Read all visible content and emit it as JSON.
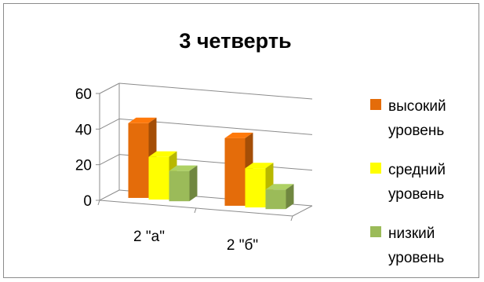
{
  "chart_data": {
    "type": "bar",
    "title": "3 четверть",
    "categories": [
      "2 \"а\"",
      "2 \"б\""
    ],
    "series": [
      {
        "name": "высокий уровень",
        "values": [
          42,
          38
        ],
        "color": "#e46c0a"
      },
      {
        "name": "средний уровень",
        "values": [
          24,
          22
        ],
        "color": "#ffff00"
      },
      {
        "name": "низкий уровень",
        "values": [
          17,
          11
        ],
        "color": "#9bbb59"
      }
    ],
    "yticks": [
      0,
      20,
      40,
      60
    ],
    "ylim": [
      0,
      60
    ],
    "xlabel": "",
    "ylabel": "",
    "grid": true,
    "legend": "right",
    "style": "3d-clustered-column"
  }
}
